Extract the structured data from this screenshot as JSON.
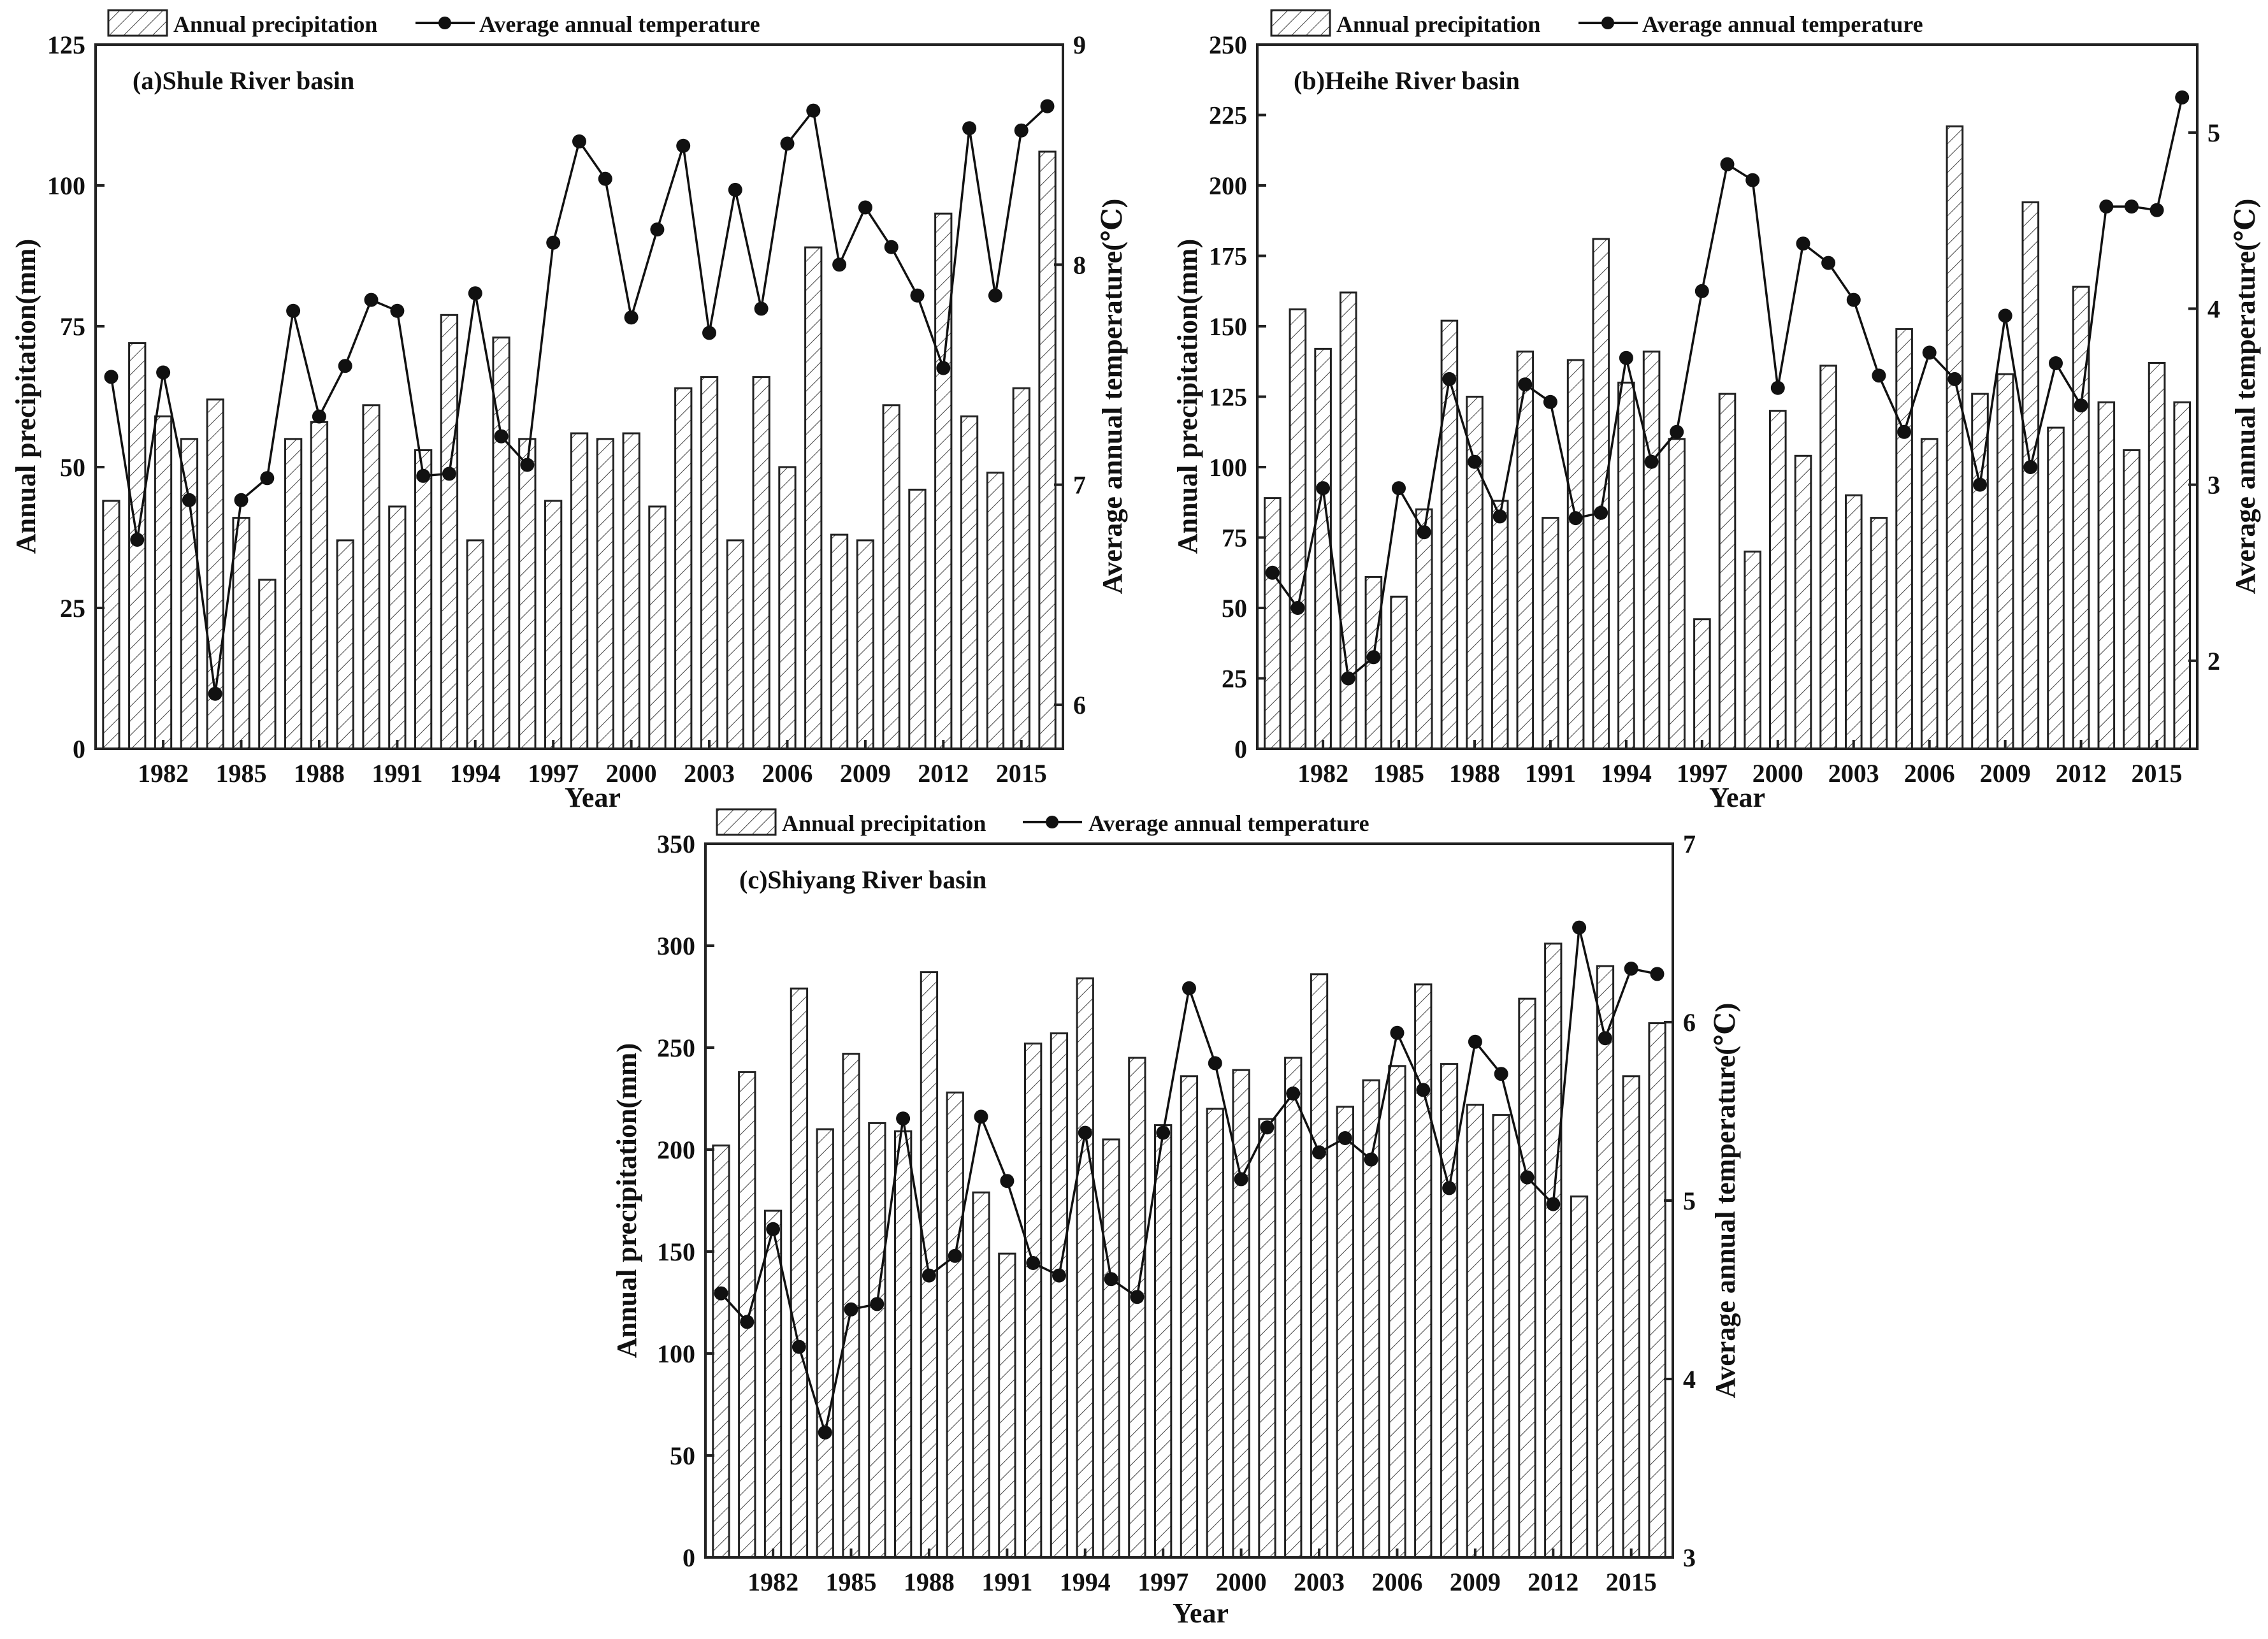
{
  "legend": {
    "precip_label": "Annual precipitation",
    "temp_label": "Average annual temperature"
  },
  "x_label": "Year",
  "left_axis_label": "Annual precipitation(mm)",
  "right_axis_label": "Average annual temperature(℃)",
  "years": [
    1980,
    1981,
    1982,
    1983,
    1984,
    1985,
    1986,
    1987,
    1988,
    1989,
    1990,
    1991,
    1992,
    1993,
    1994,
    1995,
    1996,
    1997,
    1998,
    1999,
    2000,
    2001,
    2002,
    2003,
    2004,
    2005,
    2006,
    2007,
    2008,
    2009,
    2010,
    2011,
    2012,
    2013,
    2014,
    2015,
    2016
  ],
  "x_ticks": [
    1982,
    1985,
    1988,
    1991,
    1994,
    1997,
    2000,
    2003,
    2006,
    2009,
    2012,
    2015
  ],
  "chart_data": [
    {
      "type": "bar+line",
      "title": "(a)Shule River basin",
      "xlabel": "Year",
      "ylabel": "Annual precipitation(mm)",
      "y2label": "Average annual temperature(℃)",
      "ylim": [
        0,
        125
      ],
      "y_ticks": [
        0,
        25,
        50,
        75,
        100,
        125
      ],
      "y2lim": [
        5.8,
        9
      ],
      "y2_ticks": [
        6,
        7,
        8,
        9
      ],
      "precipitation": [
        44,
        72,
        59,
        55,
        62,
        41,
        30,
        55,
        58,
        37,
        61,
        43,
        53,
        77,
        37,
        73,
        55,
        44,
        56,
        55,
        56,
        43,
        64,
        66,
        37,
        66,
        50,
        89,
        38,
        37,
        61,
        46,
        95,
        59,
        49,
        64,
        106
      ],
      "temperature": [
        7.49,
        6.75,
        7.51,
        6.93,
        6.05,
        6.93,
        7.03,
        7.79,
        7.31,
        7.54,
        7.84,
        7.79,
        7.04,
        7.05,
        7.87,
        7.22,
        7.09,
        8.1,
        8.56,
        8.39,
        7.76,
        8.16,
        8.54,
        7.69,
        8.34,
        7.8,
        8.55,
        8.7,
        8.0,
        8.26,
        8.08,
        7.86,
        7.53,
        8.62,
        7.86,
        8.61,
        8.72
      ]
    },
    {
      "type": "bar+line",
      "title": "(b)Heihe River basin",
      "xlabel": "Year",
      "ylabel": "Annual precipitation(mm)",
      "y2label": "Average annual temperature(℃)",
      "ylim": [
        0,
        250
      ],
      "y_ticks": [
        0,
        25,
        50,
        75,
        100,
        125,
        150,
        175,
        200,
        225,
        250
      ],
      "y2lim": [
        1.5,
        5.5
      ],
      "y2_ticks": [
        2,
        3,
        4,
        5
      ],
      "precipitation": [
        89,
        156,
        142,
        162,
        61,
        54,
        85,
        152,
        125,
        88,
        141,
        82,
        138,
        181,
        130,
        141,
        110,
        46,
        126,
        70,
        120,
        104,
        136,
        90,
        82,
        149,
        110,
        221,
        126,
        133,
        194,
        114,
        164,
        123,
        106,
        137,
        123
      ],
      "temperature": [
        2.5,
        2.3,
        2.98,
        1.9,
        2.02,
        2.98,
        2.73,
        3.6,
        3.13,
        2.82,
        3.57,
        3.47,
        2.81,
        2.84,
        3.72,
        3.13,
        3.3,
        4.1,
        4.82,
        4.73,
        3.55,
        4.37,
        4.26,
        4.05,
        3.62,
        3.3,
        3.75,
        3.6,
        3.0,
        3.96,
        3.1,
        3.69,
        3.45,
        4.58,
        4.58,
        4.56,
        5.2
      ]
    },
    {
      "type": "bar+line",
      "title": "(c)Shiyang River basin",
      "xlabel": "Year",
      "ylabel": "Annual precipitation(mm)",
      "y2label": "Average annual temperature(℃)",
      "ylim": [
        0,
        350
      ],
      "y_ticks": [
        0,
        50,
        100,
        150,
        200,
        250,
        300,
        350
      ],
      "y2lim": [
        3,
        7
      ],
      "y2_ticks": [
        3,
        4,
        5,
        6,
        7
      ],
      "precipitation": [
        202,
        238,
        170,
        279,
        210,
        247,
        213,
        209,
        287,
        228,
        179,
        149,
        252,
        257,
        284,
        205,
        245,
        212,
        236,
        220,
        239,
        215,
        245,
        286,
        221,
        234,
        241,
        281,
        242,
        222,
        217,
        274,
        301,
        177,
        290,
        236,
        262
      ],
      "temperature": [
        4.48,
        4.32,
        4.84,
        4.18,
        3.7,
        4.39,
        4.42,
        5.46,
        4.58,
        4.69,
        5.47,
        5.11,
        4.65,
        4.58,
        5.38,
        4.56,
        4.46,
        5.38,
        6.19,
        5.77,
        5.12,
        5.41,
        5.6,
        5.27,
        5.35,
        5.23,
        5.94,
        5.62,
        5.07,
        5.89,
        5.71,
        5.13,
        4.98,
        6.53,
        5.91,
        6.3,
        6.27
      ]
    }
  ]
}
